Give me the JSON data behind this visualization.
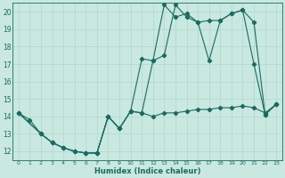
{
  "xlabel": "Humidex (Indice chaleur)",
  "bg_color": "#c8e8e0",
  "grid_color": "#b0d8d0",
  "line_color": "#1a6b60",
  "xlim": [
    -0.5,
    23.5
  ],
  "ylim": [
    11.5,
    20.5
  ],
  "yticks": [
    12,
    13,
    14,
    15,
    16,
    17,
    18,
    19,
    20
  ],
  "xticks": [
    0,
    1,
    2,
    3,
    4,
    5,
    6,
    7,
    8,
    9,
    10,
    11,
    12,
    13,
    14,
    15,
    16,
    17,
    18,
    19,
    20,
    21,
    22,
    23
  ],
  "line1_x": [
    0,
    1,
    2,
    3,
    4,
    5,
    6,
    7,
    8,
    9,
    10,
    11,
    12,
    13,
    14,
    15,
    16,
    17,
    18,
    19,
    20,
    21,
    22,
    23
  ],
  "line1_y": [
    14.2,
    13.8,
    13.0,
    12.5,
    12.2,
    12.0,
    11.9,
    11.9,
    14.0,
    13.3,
    14.3,
    14.2,
    14.0,
    14.2,
    14.2,
    14.3,
    14.4,
    14.4,
    14.5,
    14.5,
    14.6,
    14.5,
    14.2,
    14.7
  ],
  "line2_x": [
    0,
    2,
    3,
    4,
    5,
    6,
    7,
    8,
    9,
    10,
    11,
    12,
    13,
    14,
    15,
    16,
    17,
    18,
    19,
    20,
    21,
    22,
    23
  ],
  "line2_y": [
    14.2,
    13.0,
    12.5,
    12.2,
    12.0,
    11.9,
    11.9,
    14.0,
    13.3,
    14.3,
    17.3,
    17.2,
    20.4,
    19.7,
    19.9,
    19.4,
    17.2,
    19.5,
    19.9,
    20.1,
    19.4,
    14.1,
    14.7
  ],
  "line3_x": [
    0,
    2,
    3,
    4,
    5,
    6,
    7,
    8,
    9,
    10,
    11,
    12,
    13,
    14,
    15,
    16,
    17,
    18,
    19,
    20,
    21,
    22,
    23
  ],
  "line3_y": [
    14.2,
    13.0,
    12.5,
    12.2,
    12.0,
    11.9,
    11.9,
    14.0,
    13.3,
    14.3,
    14.2,
    17.2,
    17.5,
    20.4,
    19.7,
    19.4,
    19.5,
    19.5,
    19.9,
    20.1,
    17.0,
    14.1,
    14.7
  ]
}
